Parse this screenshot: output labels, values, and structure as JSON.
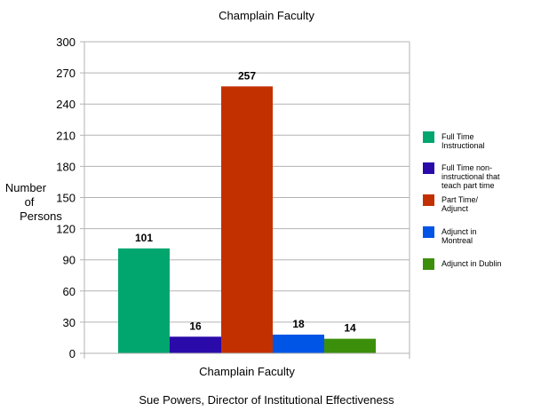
{
  "chart_data": {
    "type": "bar",
    "title": "Champlain Faculty",
    "xlabel": "Champlain Faculty",
    "ylabel_lines": [
      "Number",
      "of",
      "Persons"
    ],
    "ylim": [
      0,
      300
    ],
    "yticks": [
      0,
      30,
      60,
      90,
      120,
      150,
      180,
      210,
      240,
      270,
      300
    ],
    "grid": true,
    "legend_position": "right",
    "categories": [
      "Champlain Faculty"
    ],
    "series": [
      {
        "name_lines": [
          "Full Time",
          "Instructional"
        ],
        "values": [
          101
        ],
        "color": "#00a66e"
      },
      {
        "name_lines": [
          "Full Time non-",
          "instructional that",
          "teach part time"
        ],
        "values": [
          16
        ],
        "color": "#2a0aa9"
      },
      {
        "name_lines": [
          "Part Time/",
          "Adjunct"
        ],
        "values": [
          257
        ],
        "color": "#c33000"
      },
      {
        "name_lines": [
          "Adjunct in",
          "Montreal"
        ],
        "values": [
          18
        ],
        "color": "#0055e6"
      },
      {
        "name_lines": [
          "Adjunct in Dublin"
        ],
        "values": [
          14
        ],
        "color": "#3b8f0a"
      }
    ]
  },
  "footer": {
    "credit": "Sue Powers, Director of Institutional Effectiveness"
  }
}
